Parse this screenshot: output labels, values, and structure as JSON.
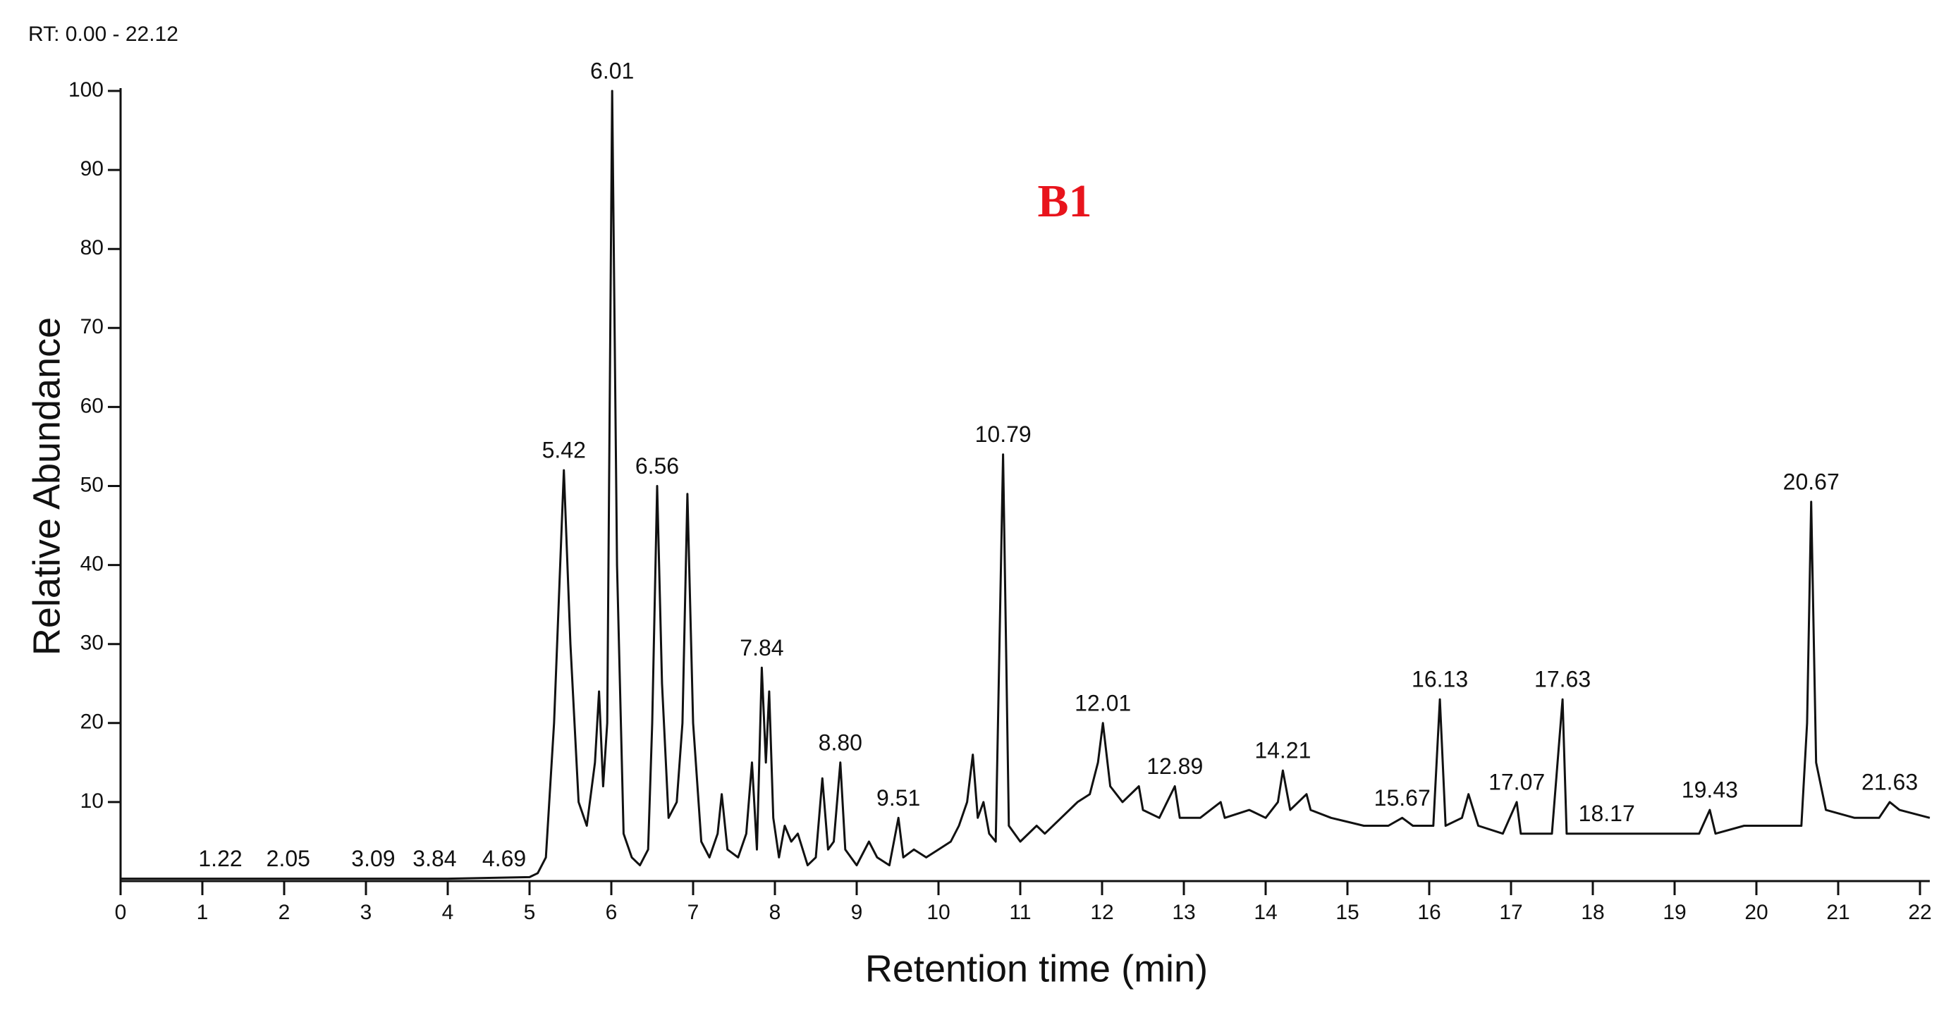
{
  "chart_data": {
    "type": "line",
    "title": "B1",
    "subtitle": "RT: 0.00 - 22.12",
    "x_label": "Retention time (min)",
    "y_label": "Relative Abundance",
    "xlim": [
      0,
      22.12
    ],
    "ylim": [
      0,
      100
    ],
    "xticks": [
      0,
      1,
      2,
      3,
      4,
      5,
      6,
      7,
      8,
      9,
      10,
      11,
      12,
      13,
      14,
      15,
      16,
      17,
      18,
      19,
      20,
      21,
      22
    ],
    "yticks": [
      10,
      20,
      30,
      40,
      50,
      60,
      70,
      80,
      90,
      100
    ],
    "title_color": "#e8141c",
    "x": [
      0,
      1,
      2,
      3,
      4,
      5,
      5.1,
      5.2,
      5.3,
      5.42,
      5.5,
      5.6,
      5.7,
      5.8,
      5.85,
      5.9,
      5.95,
      6.01,
      6.07,
      6.15,
      6.25,
      6.35,
      6.45,
      6.5,
      6.56,
      6.62,
      6.7,
      6.8,
      6.87,
      6.93,
      7.0,
      7.1,
      7.2,
      7.3,
      7.35,
      7.42,
      7.55,
      7.65,
      7.72,
      7.78,
      7.84,
      7.89,
      7.93,
      7.98,
      8.05,
      8.12,
      8.2,
      8.28,
      8.4,
      8.5,
      8.58,
      8.65,
      8.72,
      8.8,
      8.86,
      9.0,
      9.15,
      9.25,
      9.4,
      9.51,
      9.57,
      9.7,
      9.85,
      10.0,
      10.15,
      10.25,
      10.35,
      10.42,
      10.48,
      10.55,
      10.62,
      10.7,
      10.79,
      10.86,
      11.0,
      11.2,
      11.3,
      11.5,
      11.7,
      11.85,
      11.95,
      12.01,
      12.1,
      12.25,
      12.45,
      12.5,
      12.7,
      12.89,
      12.95,
      13.2,
      13.45,
      13.5,
      13.8,
      14.0,
      14.15,
      14.21,
      14.3,
      14.5,
      14.55,
      14.8,
      15.2,
      15.5,
      15.67,
      15.8,
      16.05,
      16.13,
      16.2,
      16.4,
      16.48,
      16.6,
      16.9,
      17.07,
      17.12,
      17.5,
      17.63,
      17.68,
      18.17,
      18.8,
      19.3,
      19.43,
      19.5,
      19.85,
      20.3,
      20.55,
      20.62,
      20.67,
      20.73,
      20.85,
      21.2,
      21.5,
      21.63,
      21.75,
      22.12
    ],
    "series": [
      {
        "color": "#111111",
        "values": [
          0.3,
          0.3,
          0.3,
          0.3,
          0.3,
          0.5,
          1,
          3,
          20,
          52,
          30,
          10,
          7,
          15,
          24,
          12,
          20,
          100,
          40,
          6,
          3,
          2,
          4,
          20,
          50,
          25,
          8,
          10,
          20,
          49,
          20,
          5,
          3,
          6,
          11,
          4,
          3,
          6,
          15,
          4,
          27,
          15,
          24,
          8,
          3,
          7,
          5,
          6,
          2,
          3,
          13,
          4,
          5,
          15,
          4,
          2,
          5,
          3,
          2,
          8,
          3,
          4,
          3,
          4,
          5,
          7,
          10,
          16,
          8,
          10,
          6,
          5,
          54,
          7,
          5,
          7,
          6,
          8,
          10,
          11,
          15,
          20,
          12,
          10,
          12,
          9,
          8,
          12,
          8,
          8,
          10,
          8,
          9,
          8,
          10,
          14,
          9,
          11,
          9,
          8,
          7,
          7,
          8,
          7,
          7,
          23,
          7,
          8,
          11,
          7,
          6,
          10,
          6,
          6,
          23,
          6,
          6,
          6,
          6,
          9,
          6,
          7,
          7,
          7,
          20,
          48,
          15,
          9,
          8,
          8,
          10,
          9,
          8
        ]
      }
    ],
    "annotations": [
      {
        "x": 1.22,
        "y": 0.3,
        "text": "1.22"
      },
      {
        "x": 2.05,
        "y": 0.3,
        "text": "2.05"
      },
      {
        "x": 3.09,
        "y": 0.3,
        "text": "3.09"
      },
      {
        "x": 3.84,
        "y": 0.3,
        "text": "3.84"
      },
      {
        "x": 4.69,
        "y": 0.3,
        "text": "4.69"
      },
      {
        "x": 5.42,
        "y": 52,
        "text": "5.42"
      },
      {
        "x": 6.01,
        "y": 100,
        "text": "6.01"
      },
      {
        "x": 6.56,
        "y": 50,
        "text": "6.56"
      },
      {
        "x": 7.84,
        "y": 27,
        "text": "7.84"
      },
      {
        "x": 8.8,
        "y": 15,
        "text": "8.80"
      },
      {
        "x": 9.51,
        "y": 8,
        "text": "9.51"
      },
      {
        "x": 10.79,
        "y": 54,
        "text": "10.79"
      },
      {
        "x": 12.01,
        "y": 20,
        "text": "12.01"
      },
      {
        "x": 12.89,
        "y": 12,
        "text": "12.89"
      },
      {
        "x": 14.21,
        "y": 14,
        "text": "14.21"
      },
      {
        "x": 15.67,
        "y": 8,
        "text": "15.67"
      },
      {
        "x": 16.13,
        "y": 23,
        "text": "16.13"
      },
      {
        "x": 17.07,
        "y": 10,
        "text": "17.07"
      },
      {
        "x": 17.63,
        "y": 23,
        "text": "17.63"
      },
      {
        "x": 18.17,
        "y": 6,
        "text": "18.17"
      },
      {
        "x": 19.43,
        "y": 9,
        "text": "19.43"
      },
      {
        "x": 20.67,
        "y": 48,
        "text": "20.67"
      },
      {
        "x": 21.63,
        "y": 10,
        "text": "21.63"
      }
    ]
  }
}
